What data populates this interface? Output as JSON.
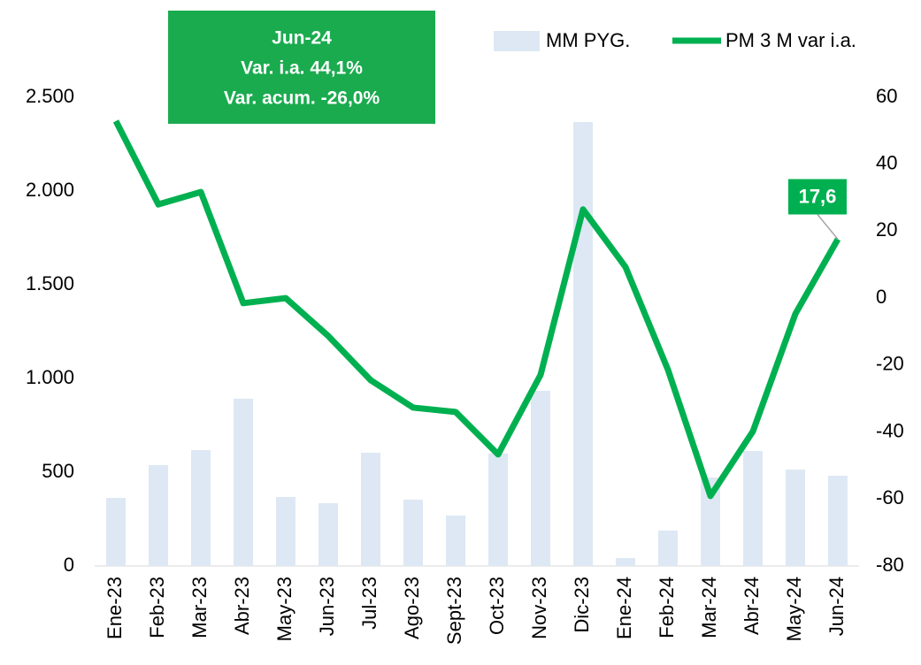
{
  "chart_data": {
    "type": "bar_line",
    "categories": [
      "Ene-23",
      "Feb-23",
      "Mar-23",
      "Abr-23",
      "May-23",
      "Jun-23",
      "Jul-23",
      "Ago-23",
      "Sept-23",
      "Oct-23",
      "Nov-23",
      "Dic-23",
      "Ene-24",
      "Feb-24",
      "Mar-24",
      "Abr-24",
      "May-24",
      "Jun-24"
    ],
    "series": [
      {
        "name": "MM PYG.",
        "type": "bar",
        "color": "#dde8f4",
        "axis": "y",
        "values": [
          363,
          538,
          618,
          892,
          368,
          335,
          604,
          354,
          269,
          600,
          934,
          2368,
          42,
          189,
          472,
          613,
          514,
          481
        ]
      },
      {
        "name": "PM 3 M var i.a.",
        "type": "line",
        "color": "#00b050",
        "axis": "y2",
        "values": [
          52.9,
          28,
          31.7,
          -1.5,
          0,
          -11.3,
          -24.5,
          -32.7,
          -34,
          -46.7,
          -22.9,
          26.5,
          9.3,
          -21.4,
          -59.1,
          -39.8,
          -4.7,
          17.6
        ],
        "value_labels": [
          null,
          null,
          null,
          null,
          null,
          null,
          null,
          null,
          null,
          null,
          null,
          null,
          null,
          null,
          null,
          null,
          null,
          "17,6"
        ]
      }
    ],
    "ylim": [
      0,
      2500
    ],
    "yticks": [
      0,
      500,
      {
        "value": 1000,
        "label": "1.000"
      },
      {
        "value": 1500,
        "label": "1.500"
      },
      {
        "value": 2000,
        "label": "2.000"
      },
      {
        "value": 2500,
        "label": "2.500"
      }
    ],
    "y2lim": [
      -80,
      60
    ],
    "y2ticks": [
      -80,
      -60,
      -40,
      -20,
      0,
      20,
      40,
      60
    ],
    "annotation": [
      "Jun-24",
      "Var. i.a. 44,1%",
      "Var. acum. -26,0%"
    ],
    "annotation_color": "#1aab4f",
    "legend": "top-right",
    "grid": false
  }
}
